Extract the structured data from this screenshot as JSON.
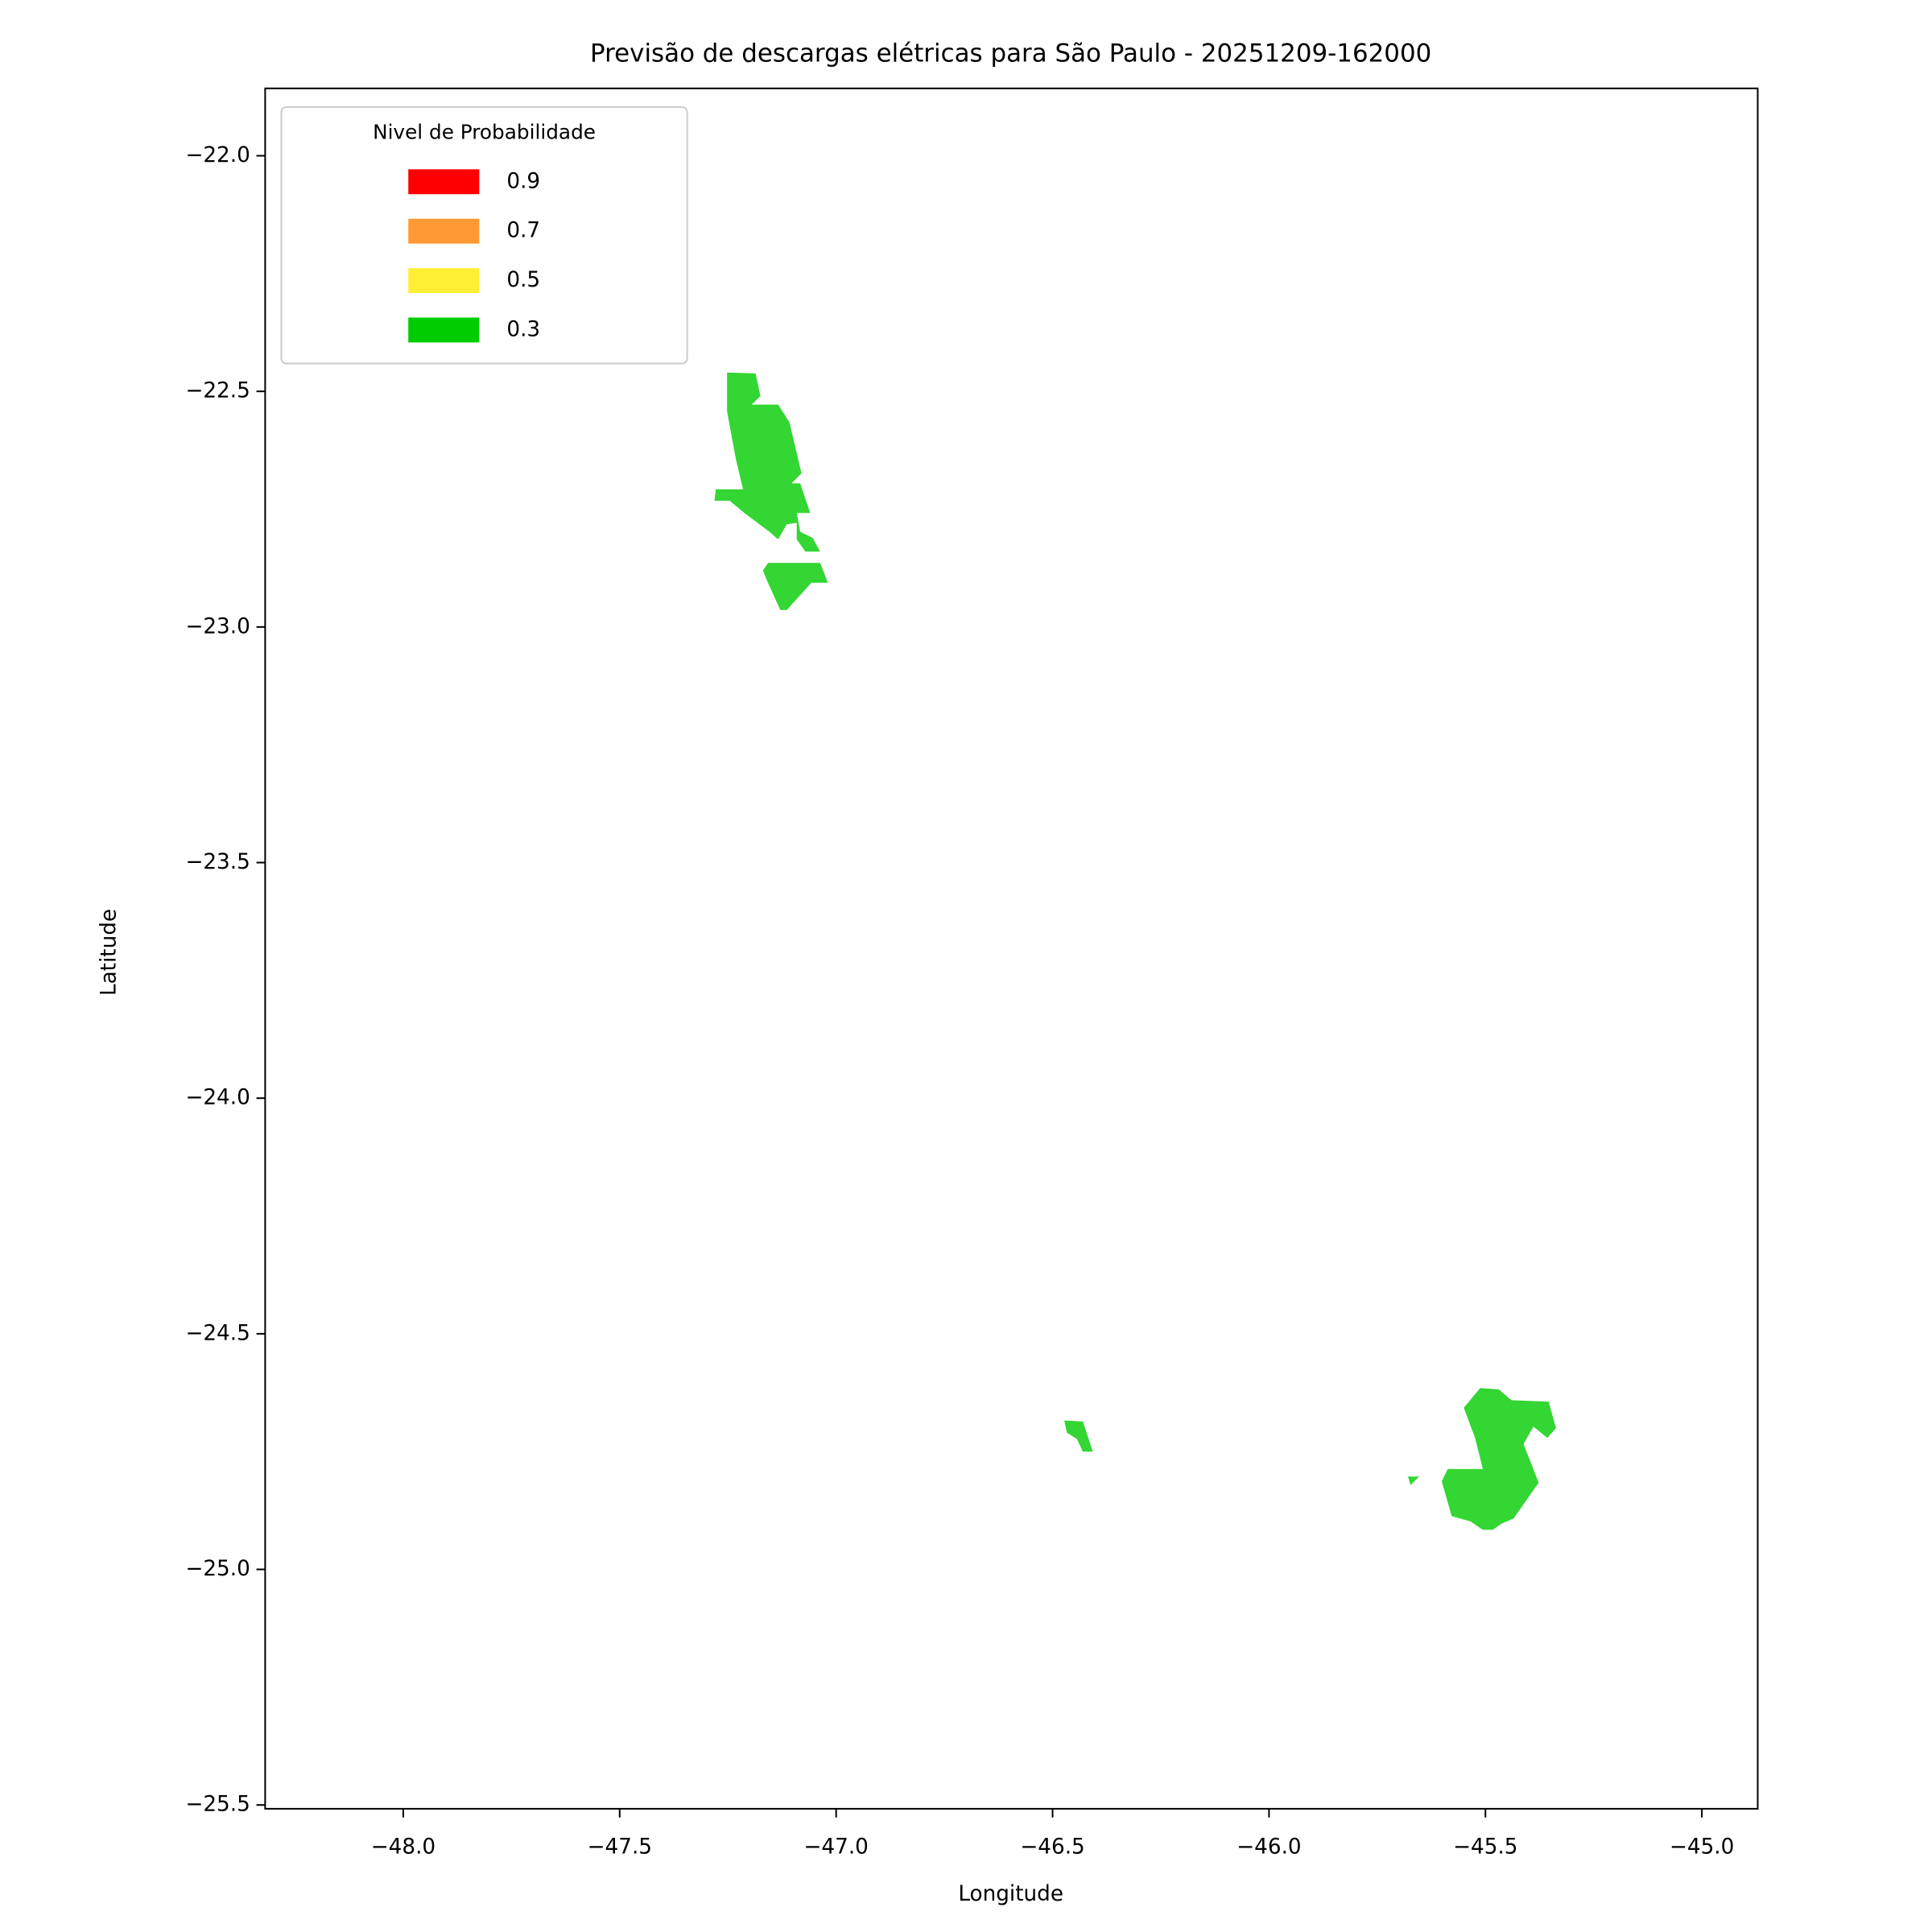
{
  "chart_data": {
    "type": "map",
    "title": "Previsão de descargas elétricas para São Paulo - 20251209-162000",
    "xlabel": "Longitude",
    "ylabel": "Latitude",
    "xlim": [
      -48.319,
      -44.871
    ],
    "ylim": [
      -25.508,
      -21.857
    ],
    "xticks": [
      {
        "value": -48,
        "label": "−48.0"
      },
      {
        "value": -47.5,
        "label": "−47.5"
      },
      {
        "value": -47,
        "label": "−47.0"
      },
      {
        "value": -46.5,
        "label": "−46.5"
      },
      {
        "value": -46,
        "label": "−46.0"
      },
      {
        "value": -45.5,
        "label": "−45.5"
      },
      {
        "value": -45,
        "label": "−45.0"
      }
    ],
    "yticks": [
      {
        "value": -22,
        "label": "−22.0"
      },
      {
        "value": -22.5,
        "label": "−22.5"
      },
      {
        "value": -23,
        "label": "−23.0"
      },
      {
        "value": -23.5,
        "label": "−23.5"
      },
      {
        "value": -24,
        "label": "−24.0"
      },
      {
        "value": -24.5,
        "label": "−24.5"
      },
      {
        "value": -25,
        "label": "−25.0"
      },
      {
        "value": -25.5,
        "label": "−25.5"
      }
    ],
    "grid": false,
    "fill_alpha": 0.8,
    "legend_title": "Nivel de Probabilidade",
    "legend_position": "upper left",
    "series": [
      {
        "name": "0.9",
        "color": "#ff0000"
      },
      {
        "name": "0.7",
        "color": "#ff9933"
      },
      {
        "name": "0.5",
        "color": "#ffee33"
      },
      {
        "name": "0.3",
        "color": "#00cc00",
        "polygons": [
          {
            "x": [
              -47.252,
              -47.186,
              -47.175,
              -47.195,
              -47.134,
              -47.108,
              -47.08,
              -47.103,
              -47.083,
              -47.06,
              -47.091,
              -47.083,
              -47.054,
              -47.037,
              -47.071,
              -47.091,
              -47.091,
              -47.114,
              -47.134,
              -47.154,
              -47.212,
              -47.246,
              -47.281,
              -47.278,
              -47.215,
              -47.232,
              -47.252
            ],
            "y": [
              -22.46,
              -22.462,
              -22.51,
              -22.528,
              -22.528,
              -22.565,
              -22.674,
              -22.695,
              -22.695,
              -22.758,
              -22.758,
              -22.798,
              -22.811,
              -22.84,
              -22.84,
              -22.814,
              -22.779,
              -22.782,
              -22.814,
              -22.798,
              -22.758,
              -22.732,
              -22.732,
              -22.708,
              -22.708,
              -22.642,
              -22.542
            ]
          },
          {
            "x": [
              -47.157,
              -47.037,
              -47.019,
              -47.057,
              -47.114,
              -47.129,
              -47.16,
              -47.169
            ],
            "y": [
              -22.864,
              -22.864,
              -22.906,
              -22.906,
              -22.964,
              -22.964,
              -22.901,
              -22.88
            ]
          },
          {
            "x": [
              -46.473,
              -46.43,
              -46.407,
              -46.43,
              -46.444,
              -46.467
            ],
            "y": [
              -24.684,
              -24.686,
              -24.75,
              -24.75,
              -24.723,
              -24.71
            ]
          },
          {
            "x": [
              -45.55,
              -45.512,
              -45.469,
              -45.44,
              -45.354,
              -45.337,
              -45.357,
              -45.389,
              -45.412,
              -45.377,
              -45.435,
              -45.463,
              -45.483,
              -45.506,
              -45.535,
              -45.578,
              -45.601,
              -45.587,
              -45.506,
              -45.524
            ],
            "y": [
              -24.657,
              -24.615,
              -24.618,
              -24.641,
              -24.644,
              -24.7,
              -24.721,
              -24.697,
              -24.734,
              -24.816,
              -24.892,
              -24.903,
              -24.916,
              -24.916,
              -24.898,
              -24.887,
              -24.813,
              -24.787,
              -24.787,
              -24.721
            ]
          },
          {
            "x": [
              -45.679,
              -45.653,
              -45.673
            ],
            "y": [
              -24.803,
              -24.803,
              -24.821
            ]
          }
        ]
      }
    ]
  }
}
